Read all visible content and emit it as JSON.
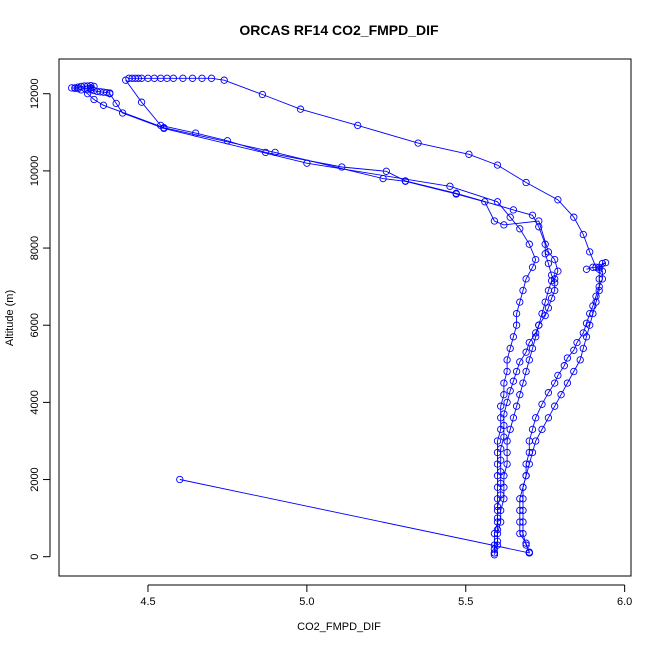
{
  "chart_data": {
    "type": "line",
    "title": "ORCAS RF14 CO2_FMPD_DIF",
    "xlabel": "CO2_FMPD_DIF",
    "ylabel": "Altitude (m)",
    "xlim": [
      4.22,
      6.02
    ],
    "ylim": [
      -500,
      12900
    ],
    "xticks": [
      "4.5",
      "5.0",
      "5.5",
      "6.0"
    ],
    "xtick_values": [
      4.5,
      5.0,
      5.5,
      6.0
    ],
    "yticks": [
      "0",
      "2000",
      "4000",
      "6000",
      "8000",
      "10000",
      "12000"
    ],
    "ytick_values": [
      0,
      2000,
      4000,
      6000,
      8000,
      10000,
      12000
    ],
    "grid": false,
    "color": "#0000ff",
    "series": [
      {
        "points": [
          [
            4.44,
            12400
          ],
          [
            4.45,
            12400
          ],
          [
            4.46,
            12400
          ],
          [
            4.47,
            12400
          ],
          [
            4.48,
            12400
          ],
          [
            4.5,
            12400
          ],
          [
            4.52,
            12400
          ],
          [
            4.54,
            12400
          ],
          [
            4.56,
            12400
          ],
          [
            4.58,
            12400
          ],
          [
            4.61,
            12400
          ],
          [
            4.64,
            12400
          ],
          [
            4.67,
            12400
          ],
          [
            4.7,
            12400
          ],
          [
            4.74,
            12350
          ],
          [
            4.86,
            11980
          ],
          [
            4.98,
            11600
          ],
          [
            5.16,
            11180
          ],
          [
            5.35,
            10720
          ],
          [
            5.51,
            10430
          ],
          [
            5.6,
            10150
          ],
          [
            5.69,
            9700
          ],
          [
            5.79,
            9250
          ],
          [
            5.84,
            8800
          ],
          [
            5.87,
            8350
          ],
          [
            5.89,
            7900
          ],
          [
            5.91,
            7500
          ],
          [
            5.93,
            7400
          ],
          [
            5.93,
            7200
          ],
          [
            5.92,
            7000
          ],
          [
            5.91,
            6750
          ],
          [
            5.9,
            6500
          ],
          [
            5.89,
            6300
          ],
          [
            5.88,
            6050
          ],
          [
            5.87,
            5800
          ],
          [
            5.85,
            5550
          ],
          [
            5.84,
            5350
          ],
          [
            5.82,
            5150
          ],
          [
            5.81,
            4950
          ],
          [
            5.79,
            4700
          ],
          [
            5.78,
            4500
          ],
          [
            5.76,
            4250
          ],
          [
            5.74,
            3950
          ],
          [
            5.72,
            3600
          ],
          [
            5.71,
            3300
          ],
          [
            5.7,
            3000
          ],
          [
            5.7,
            2700
          ],
          [
            5.69,
            2400
          ],
          [
            5.69,
            2100
          ],
          [
            5.68,
            1800
          ],
          [
            5.68,
            1500
          ],
          [
            5.68,
            1200
          ],
          [
            5.68,
            900
          ],
          [
            5.68,
            600
          ],
          [
            5.69,
            300
          ],
          [
            5.7,
            120
          ],
          [
            5.7,
            100
          ]
        ]
      },
      {
        "points": [
          [
            4.6,
            2000
          ],
          [
            5.7,
            100
          ],
          [
            5.69,
            350
          ],
          [
            5.67,
            600
          ],
          [
            5.67,
            900
          ],
          [
            5.67,
            1200
          ],
          [
            5.67,
            1500
          ],
          [
            5.68,
            1800
          ],
          [
            5.69,
            2100
          ],
          [
            5.7,
            2400
          ],
          [
            5.71,
            2700
          ],
          [
            5.72,
            3000
          ],
          [
            5.74,
            3300
          ],
          [
            5.76,
            3600
          ],
          [
            5.78,
            3900
          ],
          [
            5.8,
            4200
          ],
          [
            5.82,
            4500
          ],
          [
            5.84,
            4800
          ],
          [
            5.86,
            5100
          ],
          [
            5.87,
            5400
          ],
          [
            5.88,
            5700
          ],
          [
            5.89,
            6000
          ],
          [
            5.9,
            6300
          ],
          [
            5.91,
            6600
          ],
          [
            5.92,
            6900
          ],
          [
            5.92,
            7200
          ],
          [
            5.92,
            7450
          ],
          [
            5.93,
            7600
          ],
          [
            5.94,
            7620
          ],
          [
            5.92,
            7500
          ],
          [
            5.9,
            7500
          ],
          [
            5.88,
            7450
          ]
        ]
      },
      {
        "points": [
          [
            4.43,
            12350
          ],
          [
            4.48,
            11780
          ],
          [
            4.54,
            11180
          ],
          [
            4.65,
            10980
          ],
          [
            4.75,
            10780
          ],
          [
            4.87,
            10480
          ],
          [
            5.11,
            10100
          ],
          [
            5.25,
            9990
          ],
          [
            5.31,
            9740
          ],
          [
            5.47,
            9420
          ],
          [
            5.65,
            8990
          ],
          [
            5.71,
            8850
          ],
          [
            5.73,
            8550
          ],
          [
            5.75,
            8100
          ],
          [
            5.75,
            7850
          ],
          [
            5.76,
            7600
          ],
          [
            5.77,
            7300
          ],
          [
            5.78,
            7100
          ],
          [
            5.78,
            6900
          ],
          [
            5.77,
            6700
          ],
          [
            5.76,
            6450
          ],
          [
            5.75,
            6250
          ],
          [
            5.73,
            6000
          ],
          [
            5.72,
            5800
          ],
          [
            5.7,
            5550
          ],
          [
            5.69,
            5300
          ],
          [
            5.67,
            5050
          ],
          [
            5.66,
            4800
          ],
          [
            5.65,
            4550
          ],
          [
            5.64,
            4300
          ],
          [
            5.63,
            4000
          ],
          [
            5.62,
            3700
          ],
          [
            5.62,
            3400
          ],
          [
            5.62,
            3100
          ],
          [
            5.61,
            2800
          ],
          [
            5.61,
            2500
          ],
          [
            5.61,
            2200
          ],
          [
            5.61,
            1900
          ],
          [
            5.61,
            1600
          ],
          [
            5.6,
            1300
          ],
          [
            5.6,
            1000
          ],
          [
            5.6,
            700
          ],
          [
            5.6,
            400
          ],
          [
            5.59,
            200
          ],
          [
            5.59,
            100
          ]
        ]
      },
      {
        "points": [
          [
            5.59,
            50
          ],
          [
            5.6,
            300
          ],
          [
            5.6,
            600
          ],
          [
            5.61,
            900
          ],
          [
            5.61,
            1200
          ],
          [
            5.62,
            1500
          ],
          [
            5.62,
            1800
          ],
          [
            5.62,
            2100
          ],
          [
            5.63,
            2400
          ],
          [
            5.63,
            2700
          ],
          [
            5.63,
            3000
          ],
          [
            5.64,
            3300
          ],
          [
            5.65,
            3600
          ],
          [
            5.66,
            3900
          ],
          [
            5.67,
            4200
          ],
          [
            5.68,
            4500
          ],
          [
            5.69,
            4800
          ],
          [
            5.7,
            5100
          ],
          [
            5.71,
            5400
          ],
          [
            5.72,
            5700
          ],
          [
            5.73,
            6000
          ],
          [
            5.74,
            6300
          ],
          [
            5.75,
            6600
          ],
          [
            5.76,
            6900
          ],
          [
            5.77,
            7150
          ],
          [
            5.78,
            7200
          ],
          [
            5.79,
            7400
          ],
          [
            5.78,
            7700
          ],
          [
            5.76,
            7900
          ],
          [
            5.73,
            8700
          ],
          [
            5.62,
            8600
          ],
          [
            5.59,
            8700
          ],
          [
            5.56,
            9200
          ],
          [
            5.47,
            9400
          ],
          [
            5.31,
            9730
          ],
          [
            5.24,
            9800
          ],
          [
            4.9,
            10480
          ],
          [
            4.55,
            11120
          ],
          [
            4.36,
            11700
          ],
          [
            4.33,
            11850
          ],
          [
            4.31,
            12000
          ],
          [
            4.29,
            12100
          ],
          [
            4.28,
            12130
          ],
          [
            4.27,
            12140
          ],
          [
            4.26,
            12150
          ],
          [
            4.27,
            12150
          ],
          [
            4.28,
            12170
          ],
          [
            4.29,
            12190
          ],
          [
            4.3,
            12200
          ],
          [
            4.31,
            12200
          ],
          [
            4.32,
            12210
          ],
          [
            4.33,
            12190
          ],
          [
            4.32,
            12150
          ],
          [
            4.31,
            12120
          ],
          [
            4.32,
            12100
          ],
          [
            4.33,
            12080
          ],
          [
            4.34,
            12060
          ],
          [
            4.35,
            12050
          ],
          [
            4.36,
            12040
          ],
          [
            4.37,
            12030
          ],
          [
            4.38,
            12020
          ]
        ]
      },
      {
        "points": [
          [
            4.38,
            12000
          ],
          [
            4.4,
            11750
          ],
          [
            4.42,
            11500
          ],
          [
            4.55,
            11100
          ],
          [
            5.0,
            10200
          ],
          [
            5.45,
            9600
          ],
          [
            5.6,
            9200
          ],
          [
            5.64,
            8800
          ],
          [
            5.67,
            8500
          ],
          [
            5.7,
            8100
          ],
          [
            5.72,
            7700
          ],
          [
            5.71,
            7500
          ],
          [
            5.69,
            7200
          ],
          [
            5.68,
            6900
          ],
          [
            5.67,
            6600
          ],
          [
            5.66,
            6300
          ],
          [
            5.66,
            6000
          ],
          [
            5.65,
            5700
          ],
          [
            5.64,
            5400
          ],
          [
            5.63,
            5100
          ],
          [
            5.63,
            4800
          ],
          [
            5.62,
            4500
          ],
          [
            5.62,
            4200
          ],
          [
            5.61,
            3900
          ],
          [
            5.61,
            3600
          ],
          [
            5.61,
            3300
          ],
          [
            5.6,
            3000
          ],
          [
            5.6,
            2700
          ],
          [
            5.6,
            2400
          ],
          [
            5.6,
            2100
          ],
          [
            5.6,
            1800
          ],
          [
            5.6,
            1500
          ],
          [
            5.6,
            1200
          ],
          [
            5.6,
            900
          ],
          [
            5.59,
            600
          ],
          [
            5.59,
            300
          ],
          [
            5.59,
            100
          ]
        ]
      }
    ]
  }
}
